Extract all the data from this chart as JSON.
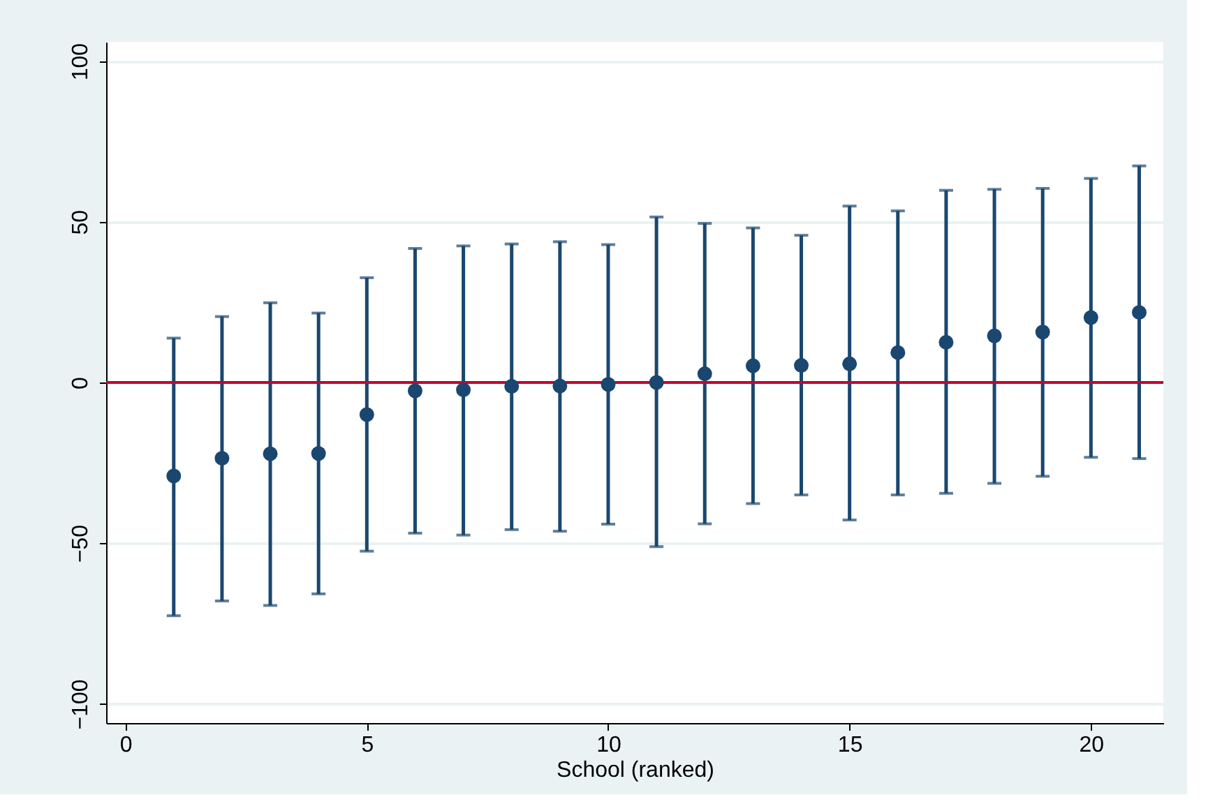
{
  "chart_data": {
    "type": "scatter",
    "xlabel": "School (ranked)",
    "x": [
      1,
      2,
      3,
      4,
      5,
      6,
      7,
      8,
      9,
      10,
      11,
      12,
      13,
      14,
      15,
      16,
      17,
      18,
      19,
      20,
      21
    ],
    "values": [
      -29.1,
      -23.6,
      -22.2,
      -22.1,
      -10.0,
      -2.6,
      -2.3,
      -1.2,
      -1.1,
      -0.6,
      0.0,
      2.7,
      5.2,
      5.3,
      5.8,
      9.3,
      12.5,
      14.5,
      15.7,
      20.2,
      21.8
    ],
    "errors": [
      [
        -72.6,
        13.8
      ],
      [
        -68.0,
        20.5
      ],
      [
        -69.4,
        24.8
      ],
      [
        -65.8,
        21.6
      ],
      [
        -52.5,
        32.6
      ],
      [
        -46.9,
        41.7
      ],
      [
        -47.5,
        42.5
      ],
      [
        -45.8,
        43.1
      ],
      [
        -46.3,
        43.8
      ],
      [
        -44.1,
        42.9
      ],
      [
        -51.1,
        51.5
      ],
      [
        -44.0,
        49.5
      ],
      [
        -37.7,
        48.1
      ],
      [
        -35.0,
        45.8
      ],
      [
        -42.8,
        54.9
      ],
      [
        -35.0,
        53.4
      ],
      [
        -34.5,
        59.8
      ],
      [
        -31.4,
        60.1
      ],
      [
        -29.2,
        60.4
      ],
      [
        -23.3,
        63.5
      ],
      [
        -23.7,
        67.4
      ]
    ],
    "color": "#1a476f",
    "marker": "circle",
    "xlim": [
      -0.4,
      21.5
    ],
    "ylim": [
      -106,
      106
    ],
    "xticks": [
      0,
      5,
      10,
      15,
      20
    ],
    "yticks": [
      -100,
      -50,
      0,
      50,
      100
    ],
    "grid": "y",
    "ref_lines": [
      {
        "axis": "y",
        "value": 0,
        "color": "#c10534"
      }
    ]
  }
}
